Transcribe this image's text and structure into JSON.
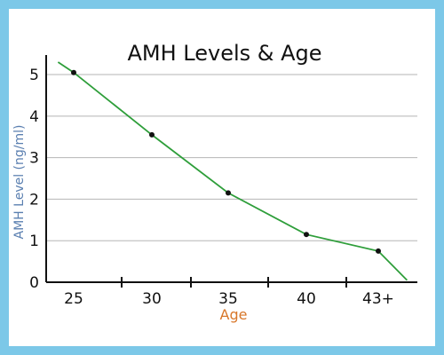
{
  "chart_data": {
    "type": "line",
    "title": "AMH Levels & Age",
    "xlabel": "Age",
    "ylabel": "AMH Level (ng/ml)",
    "categories": [
      "25",
      "30",
      "35",
      "40",
      "43+"
    ],
    "y_ticks": [
      "0",
      "1",
      "2",
      "3",
      "4",
      "5"
    ],
    "ylim": [
      0,
      5.3
    ],
    "grid": true,
    "series": [
      {
        "x": [
          "25",
          "30",
          "35",
          "40",
          "43+"
        ],
        "values": [
          5.05,
          3.55,
          2.15,
          1.15,
          0.75
        ]
      }
    ],
    "trend_line": {
      "start": [
        24,
        5.3
      ],
      "end": [
        44.2,
        0.05
      ]
    }
  },
  "colors": {
    "background": "#7cc8e8",
    "line": "#2e9e3a",
    "point": "#111111",
    "grid": "#b5b5b5",
    "axis": "#111111",
    "ylabel": "#5a7fb0",
    "xlabel": "#d8772a",
    "highlight_tick": "#cc2222"
  }
}
